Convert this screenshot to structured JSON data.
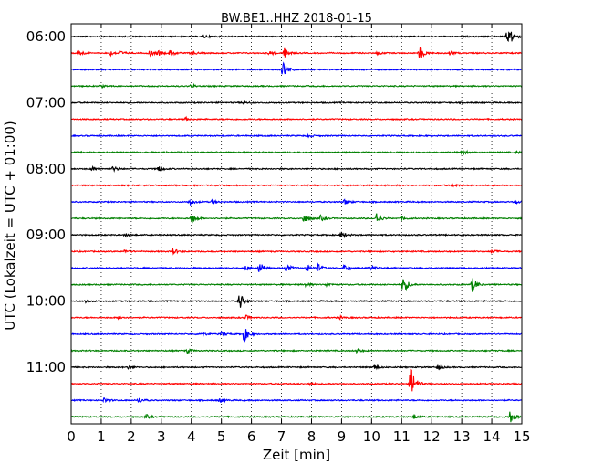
{
  "chart_data": {
    "type": "line",
    "title": "BW.BE1..HHZ 2018-01-15",
    "xlabel": "Zeit  [min]",
    "ylabel": "UTC (Lokalzeit = UTC + 01:00)",
    "xlim": [
      0,
      15
    ],
    "x_ticks": [
      "0",
      "1",
      "2",
      "3",
      "4",
      "5",
      "6",
      "7",
      "8",
      "9",
      "10",
      "11",
      "12",
      "13",
      "14",
      "15"
    ],
    "y_ticks": [
      {
        "row": 0,
        "label": "06:00"
      },
      {
        "row": 4,
        "label": "07:00"
      },
      {
        "row": 8,
        "label": "08:00"
      },
      {
        "row": 12,
        "label": "09:00"
      },
      {
        "row": 16,
        "label": "10:00"
      },
      {
        "row": 20,
        "label": "11:00"
      }
    ],
    "grid": "vertical dotted",
    "colors": [
      "#000000",
      "#ff0000",
      "#0000ff",
      "#008000"
    ],
    "rows": [
      {
        "start": "06:00",
        "events": [
          {
            "t": 4.4,
            "a": 0.25
          },
          {
            "t": 14.5,
            "a": 0.9
          },
          {
            "t": 14.65,
            "a": 0.7
          }
        ]
      },
      {
        "start": "06:15",
        "events": [
          {
            "t": 0.25,
            "a": 0.5
          },
          {
            "t": 1.3,
            "a": 0.35
          },
          {
            "t": 1.6,
            "a": 0.35
          },
          {
            "t": 2.6,
            "a": 0.45
          },
          {
            "t": 2.9,
            "a": 0.35
          },
          {
            "t": 3.3,
            "a": 0.5
          },
          {
            "t": 4.0,
            "a": 0.35
          },
          {
            "t": 6.6,
            "a": 0.3
          },
          {
            "t": 7.1,
            "a": 0.7
          },
          {
            "t": 10.2,
            "a": 0.25
          },
          {
            "t": 11.6,
            "a": 1.1
          },
          {
            "t": 12.6,
            "a": 0.3
          }
        ]
      },
      {
        "start": "06:30",
        "events": [
          {
            "t": 7.05,
            "a": 1.4
          }
        ]
      },
      {
        "start": "06:45",
        "events": [
          {
            "t": 1.0,
            "a": 0.2
          },
          {
            "t": 4.0,
            "a": 0.25
          }
        ]
      },
      {
        "start": "07:00",
        "events": [
          {
            "t": 5.7,
            "a": 0.25
          }
        ]
      },
      {
        "start": "07:15",
        "events": [
          {
            "t": 3.8,
            "a": 0.2
          }
        ]
      },
      {
        "start": "07:30",
        "events": [
          {
            "t": 7.9,
            "a": 0.2
          }
        ]
      },
      {
        "start": "07:45",
        "events": [
          {
            "t": 13.0,
            "a": 0.35
          },
          {
            "t": 14.8,
            "a": 0.2
          }
        ]
      },
      {
        "start": "08:00",
        "events": [
          {
            "t": 0.7,
            "a": 0.3
          },
          {
            "t": 1.4,
            "a": 0.4
          },
          {
            "t": 2.9,
            "a": 0.4
          }
        ]
      },
      {
        "start": "08:15",
        "events": [
          {
            "t": 12.7,
            "a": 0.25
          }
        ]
      },
      {
        "start": "08:30",
        "events": [
          {
            "t": 3.95,
            "a": 0.5
          },
          {
            "t": 4.7,
            "a": 0.35
          },
          {
            "t": 9.1,
            "a": 0.45
          },
          {
            "t": 14.8,
            "a": 0.25
          }
        ]
      },
      {
        "start": "08:45",
        "events": [
          {
            "t": 4.0,
            "a": 0.9
          },
          {
            "t": 7.75,
            "a": 0.8
          },
          {
            "t": 8.3,
            "a": 0.4
          },
          {
            "t": 10.15,
            "a": 0.9
          },
          {
            "t": 11.0,
            "a": 0.3
          }
        ]
      },
      {
        "start": "09:00",
        "events": [
          {
            "t": 1.8,
            "a": 0.2
          },
          {
            "t": 9.0,
            "a": 0.45
          }
        ]
      },
      {
        "start": "09:15",
        "events": [
          {
            "t": 1.8,
            "a": 0.3
          },
          {
            "t": 3.35,
            "a": 0.6
          },
          {
            "t": 14.0,
            "a": 0.3
          }
        ]
      },
      {
        "start": "09:30",
        "events": [
          {
            "t": 5.8,
            "a": 0.4
          },
          {
            "t": 6.25,
            "a": 1.0
          },
          {
            "t": 7.15,
            "a": 0.75
          },
          {
            "t": 7.85,
            "a": 0.5
          },
          {
            "t": 8.2,
            "a": 0.6
          },
          {
            "t": 9.1,
            "a": 0.55
          },
          {
            "t": 10.0,
            "a": 0.3
          }
        ]
      },
      {
        "start": "09:45",
        "events": [
          {
            "t": 7.8,
            "a": 0.25
          },
          {
            "t": 8.5,
            "a": 0.25
          },
          {
            "t": 11.05,
            "a": 1.6
          },
          {
            "t": 13.35,
            "a": 1.1
          }
        ]
      },
      {
        "start": "10:00",
        "events": [
          {
            "t": 0.5,
            "a": 0.25
          },
          {
            "t": 5.6,
            "a": 1.3
          }
        ]
      },
      {
        "start": "10:15",
        "events": [
          {
            "t": 1.6,
            "a": 0.3
          },
          {
            "t": 5.8,
            "a": 0.35
          },
          {
            "t": 8.9,
            "a": 0.25
          }
        ]
      },
      {
        "start": "10:30",
        "events": [
          {
            "t": 4.3,
            "a": 0.3
          },
          {
            "t": 5.0,
            "a": 0.3
          },
          {
            "t": 5.75,
            "a": 1.2
          }
        ]
      },
      {
        "start": "10:45",
        "events": [
          {
            "t": 3.85,
            "a": 0.35
          },
          {
            "t": 9.5,
            "a": 0.25
          }
        ]
      },
      {
        "start": "11:00",
        "events": [
          {
            "t": 1.9,
            "a": 0.2
          },
          {
            "t": 10.1,
            "a": 0.3
          },
          {
            "t": 12.2,
            "a": 0.35
          }
        ]
      },
      {
        "start": "11:15",
        "events": [
          {
            "t": 11.3,
            "a": 2.8
          },
          {
            "t": 7.95,
            "a": 0.25
          }
        ]
      },
      {
        "start": "11:30",
        "events": [
          {
            "t": 1.1,
            "a": 0.35
          },
          {
            "t": 2.25,
            "a": 0.4
          },
          {
            "t": 4.95,
            "a": 0.35
          }
        ]
      },
      {
        "start": "11:45",
        "events": [
          {
            "t": 2.5,
            "a": 0.3
          },
          {
            "t": 11.4,
            "a": 0.35
          },
          {
            "t": 14.6,
            "a": 1.0
          }
        ]
      }
    ]
  }
}
